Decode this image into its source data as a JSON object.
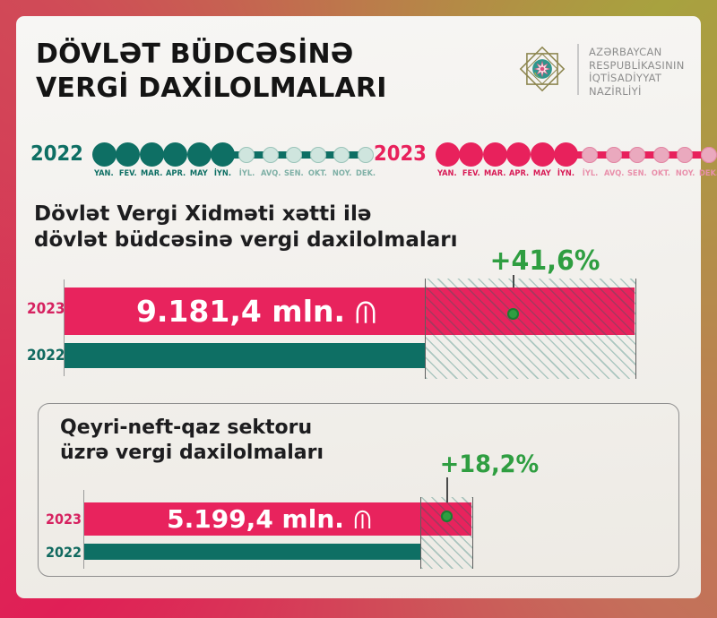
{
  "title": {
    "line1": "DÖVLƏT BÜDCƏSİNƏ",
    "line2": "VERGİ DAXİLOLMALARI"
  },
  "ministry": {
    "line1": "AZƏRBAYCAN",
    "line2": "RESPUBLİKASININ",
    "line3": "İQTİSADİYYAT",
    "line4": "NAZİRLİYİ"
  },
  "months": [
    "YAN.",
    "FEV.",
    "MAR.",
    "APR.",
    "MAY",
    "İYN.",
    "İYL.",
    "AVQ.",
    "SEN.",
    "OKT.",
    "NOY.",
    "DEK."
  ],
  "months_active_count": 6,
  "timeline_2022": {
    "year": "2022"
  },
  "timeline_2023": {
    "year": "2023"
  },
  "chart1": {
    "heading_line1": "Dövlət Vergi Xidməti xətti ilə",
    "heading_line2": "dövlət büdcəsinə vergi daxilolmaları",
    "growth": "+41,6%",
    "bar_2023_label": "2023",
    "bar_2022_label": "2022",
    "value_2023": "9.181,4 mln."
  },
  "chart2": {
    "heading_line1": "Qeyri-neft-qaz sektoru",
    "heading_line2": "üzrə vergi daxilolmaları",
    "growth": "+18,2%",
    "bar_2023_label": "2023",
    "bar_2022_label": "2022",
    "value_2023": "5.199,4 mln."
  },
  "colors": {
    "accent_pink": "#e8235d",
    "accent_teal": "#0e6f64",
    "growth_green": "#2f9e41",
    "frame_top_left": "#d04b57",
    "frame_top_right": "#a8a23f",
    "frame_bottom_left": "#e01f56",
    "frame_bottom_right": "#c4705a"
  },
  "chart_data": [
    {
      "type": "bar",
      "title": "Dövlət Vergi Xidməti xətti ilə dövlət büdcəsinə vergi daxilolmaları",
      "categories": [
        "2023",
        "2022"
      ],
      "values": [
        9181.4,
        null
      ],
      "value_labels": [
        "9.181,4 mln. ₼",
        ""
      ],
      "growth_label": "+41,6%",
      "unit": "mln. ₼",
      "highlighted_period_months": [
        "YAN.",
        "FEV.",
        "MAR.",
        "APR.",
        "MAY",
        "İYN."
      ]
    },
    {
      "type": "bar",
      "title": "Qeyri-neft-qaz sektoru üzrə vergi daxilolmaları",
      "categories": [
        "2023",
        "2022"
      ],
      "values": [
        5199.4,
        null
      ],
      "value_labels": [
        "5.199,4 mln. ₼",
        ""
      ],
      "growth_label": "+18,2%",
      "unit": "mln. ₼",
      "highlighted_period_months": [
        "YAN.",
        "FEV.",
        "MAR.",
        "APR.",
        "MAY",
        "İYN."
      ]
    }
  ]
}
